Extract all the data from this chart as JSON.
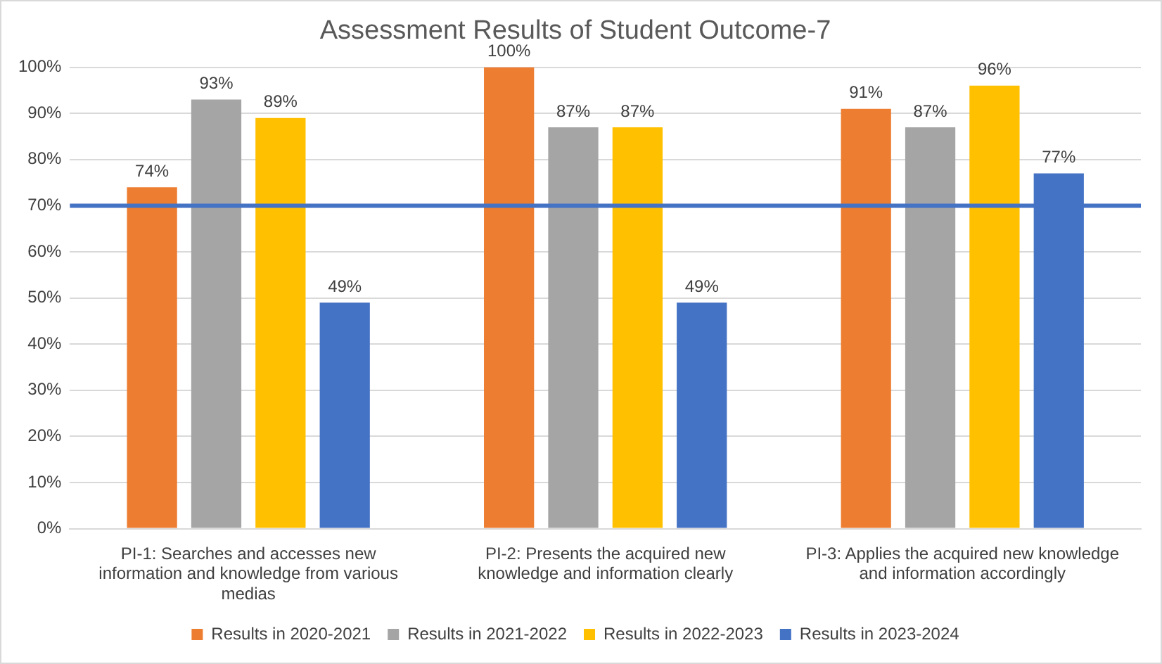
{
  "chart_data": {
    "type": "bar",
    "title": "Assessment Results of Student Outcome-7",
    "categories": [
      "PI-1: Searches and accesses new information and knowledge from various medias",
      "PI-2: Presents the acquired new knowledge and information clearly",
      "PI-3: Applies the acquired new knowledge and information accordingly"
    ],
    "series": [
      {
        "name": "Results in 2020-2021",
        "color": "#ed7d31",
        "values": [
          74,
          100,
          91
        ],
        "value_labels": [
          "74%",
          "100%",
          "91%"
        ]
      },
      {
        "name": "Results in 2021-2022",
        "color": "#a5a5a5",
        "values": [
          93,
          87,
          87
        ],
        "value_labels": [
          "93%",
          "87%",
          "87%"
        ]
      },
      {
        "name": "Results in 2022-2023",
        "color": "#ffc000",
        "values": [
          89,
          87,
          96
        ],
        "value_labels": [
          "89%",
          "87%",
          "96%"
        ]
      },
      {
        "name": "Results in 2023-2024",
        "color": "#4472c4",
        "values": [
          49,
          49,
          77
        ],
        "value_labels": [
          "49%",
          "49%",
          "77%"
        ]
      }
    ],
    "ylim": [
      0,
      100
    ],
    "yticks": [
      {
        "value": 0,
        "label": "0%"
      },
      {
        "value": 10,
        "label": "10%"
      },
      {
        "value": 20,
        "label": "20%"
      },
      {
        "value": 30,
        "label": "30%"
      },
      {
        "value": 40,
        "label": "40%"
      },
      {
        "value": 50,
        "label": "50%"
      },
      {
        "value": 60,
        "label": "60%"
      },
      {
        "value": 70,
        "label": "70%"
      },
      {
        "value": 80,
        "label": "80%"
      },
      {
        "value": 90,
        "label": "90%"
      },
      {
        "value": 100,
        "label": "100%"
      }
    ],
    "ref_lines": [
      {
        "axis": "y",
        "value": 70,
        "color": "#4472c4"
      }
    ],
    "grid": "y",
    "legend": "bottom"
  }
}
